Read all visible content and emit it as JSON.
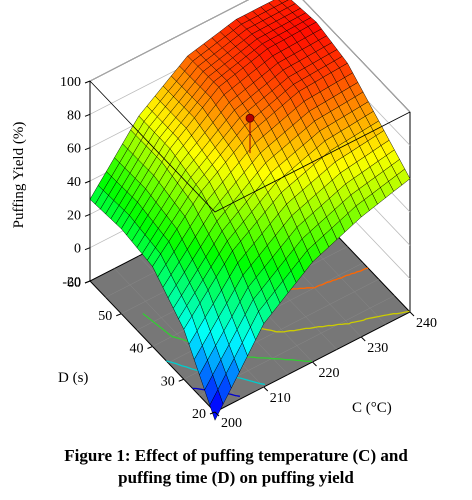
{
  "caption": {
    "line1": "Figure 1: Effect of puffing temperature (C) and",
    "line2": "puffing time (D) on puffing yield"
  },
  "chart_data": {
    "type": "surface",
    "zlabel": "Puffing Yield (%)",
    "xlabel": "C (°C)",
    "ylabel": "D (s)",
    "x_ticks": [
      "200",
      "210",
      "220",
      "230",
      "240"
    ],
    "y_ticks": [
      "20",
      "30",
      "40",
      "50",
      "60"
    ],
    "z_ticks": [
      "-20",
      "0",
      "20",
      "40",
      "60",
      "80",
      "100"
    ],
    "xlim": [
      200,
      240
    ],
    "ylim": [
      20,
      60
    ],
    "zlim": [
      -20,
      100
    ],
    "grid": true,
    "colormap": [
      "#0000ff",
      "#00ffff",
      "#00ff00",
      "#ffff00",
      "#ff0000"
    ],
    "floor_color": "#777777",
    "x": [
      200,
      210,
      220,
      230,
      240
    ],
    "y": [
      20,
      30,
      40,
      50,
      60
    ],
    "z": [
      [
        -25,
        18,
        40,
        52,
        60
      ],
      [
        10,
        42,
        62,
        72,
        75
      ],
      [
        28,
        58,
        78,
        88,
        90
      ],
      [
        31,
        64,
        86,
        94,
        95
      ],
      [
        29,
        64,
        85,
        92,
        92
      ]
    ],
    "design_point": {
      "x": 220,
      "y": 40,
      "z": 87
    },
    "floor_contours": [
      {
        "level": 0,
        "color": "#0000cc"
      },
      {
        "level": 20,
        "color": "#00cccc"
      },
      {
        "level": 40,
        "color": "#33cc33"
      },
      {
        "level": 60,
        "color": "#cccc00"
      },
      {
        "level": 80,
        "color": "#ff6600"
      }
    ]
  }
}
